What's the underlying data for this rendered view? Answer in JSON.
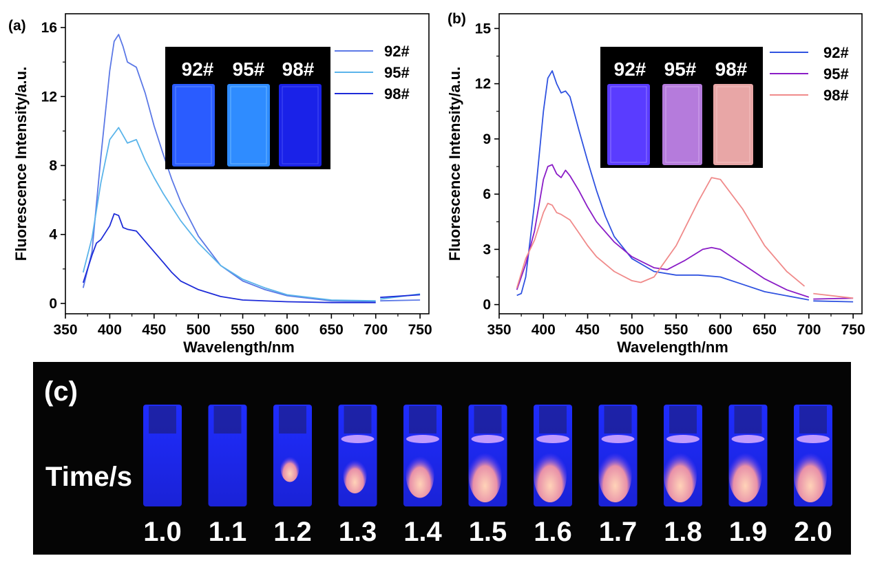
{
  "chart_data": [
    {
      "panel_label": "(a)",
      "type": "line",
      "xlabel": "Wavelength/nm",
      "ylabel": "Fluorescence Intensity/a.u.",
      "xlim": [
        350,
        760
      ],
      "ylim": [
        -0.6,
        16.8
      ],
      "xticks": [
        350,
        400,
        450,
        500,
        550,
        600,
        650,
        700,
        750
      ],
      "yticks": [
        0,
        4,
        8,
        12,
        16
      ],
      "legend_position": "top-right",
      "inset_labels": [
        "92#",
        "95#",
        "98#"
      ],
      "inset_colors": [
        "#2a5cff",
        "#2f8cff",
        "#1a22e8"
      ],
      "series": [
        {
          "name": "92#",
          "color": "#5b78e6",
          "x": [
            370,
            380,
            390,
            400,
            405,
            410,
            415,
            420,
            430,
            440,
            450,
            460,
            470,
            480,
            500,
            525,
            550,
            575,
            600,
            650,
            700,
            705,
            750
          ],
          "y": [
            0.9,
            3.0,
            8.5,
            13.5,
            15.2,
            15.6,
            14.9,
            14.0,
            13.7,
            12.2,
            10.3,
            8.7,
            7.2,
            5.9,
            3.9,
            2.2,
            1.3,
            0.8,
            0.45,
            0.15,
            0.1,
            0.15,
            0.2
          ]
        },
        {
          "name": "95#",
          "color": "#5ab4ea",
          "x": [
            370,
            380,
            390,
            400,
            410,
            420,
            430,
            440,
            450,
            460,
            470,
            480,
            500,
            525,
            550,
            575,
            600,
            650,
            700,
            705,
            750
          ],
          "y": [
            1.8,
            3.8,
            7.0,
            9.5,
            10.2,
            9.3,
            9.5,
            8.3,
            7.3,
            6.4,
            5.6,
            4.8,
            3.5,
            2.2,
            1.4,
            0.9,
            0.5,
            0.2,
            0.15,
            0.25,
            0.55
          ]
        },
        {
          "name": "98#",
          "color": "#1d2bd8",
          "x": [
            370,
            380,
            385,
            390,
            400,
            405,
            410,
            415,
            420,
            430,
            440,
            450,
            460,
            470,
            480,
            500,
            525,
            550,
            600,
            650,
            700,
            705,
            750
          ],
          "y": [
            1.2,
            2.8,
            3.5,
            3.7,
            4.5,
            5.2,
            5.1,
            4.4,
            4.3,
            4.2,
            3.6,
            3.0,
            2.4,
            1.8,
            1.3,
            0.8,
            0.4,
            0.2,
            0.1,
            0.05,
            0.05,
            0.35,
            0.5
          ]
        }
      ]
    },
    {
      "panel_label": "(b)",
      "type": "line",
      "xlabel": "Wavelength/nm",
      "ylabel": "Fluorescence Intensity/a.u.",
      "xlim": [
        350,
        760
      ],
      "ylim": [
        -0.5,
        15.8
      ],
      "xticks": [
        350,
        400,
        450,
        500,
        550,
        600,
        650,
        700,
        750
      ],
      "yticks": [
        0,
        3,
        6,
        9,
        12,
        15
      ],
      "legend_position": "top-right",
      "inset_labels": [
        "92#",
        "95#",
        "98#"
      ],
      "inset_colors": [
        "#5a3cff",
        "#b57bdc",
        "#e8a6a6"
      ],
      "series": [
        {
          "name": "92#",
          "color": "#2f52e0",
          "x": [
            370,
            375,
            380,
            390,
            400,
            405,
            410,
            415,
            420,
            425,
            430,
            440,
            450,
            460,
            470,
            480,
            500,
            525,
            550,
            575,
            600,
            625,
            650,
            700,
            705,
            750
          ],
          "y": [
            0.5,
            0.6,
            1.5,
            5.5,
            10.5,
            12.3,
            12.7,
            12.0,
            11.5,
            11.6,
            11.3,
            9.5,
            7.8,
            6.2,
            4.8,
            3.7,
            2.5,
            1.8,
            1.6,
            1.6,
            1.5,
            1.1,
            0.7,
            0.25,
            0.2,
            0.15
          ]
        },
        {
          "name": "95#",
          "color": "#8a1cc6",
          "x": [
            370,
            380,
            390,
            400,
            405,
            410,
            415,
            420,
            425,
            430,
            440,
            450,
            460,
            480,
            500,
            525,
            540,
            560,
            580,
            590,
            600,
            625,
            650,
            675,
            700,
            705,
            750
          ],
          "y": [
            0.8,
            2.2,
            4.0,
            6.8,
            7.5,
            7.6,
            7.1,
            6.9,
            7.3,
            7.0,
            6.2,
            5.3,
            4.5,
            3.4,
            2.6,
            2.0,
            1.9,
            2.4,
            3.0,
            3.1,
            3.0,
            2.2,
            1.4,
            0.8,
            0.4,
            0.3,
            0.35
          ]
        },
        {
          "name": "98#",
          "color": "#f08a8a",
          "x": [
            370,
            380,
            390,
            400,
            405,
            410,
            415,
            420,
            430,
            440,
            450,
            460,
            480,
            500,
            510,
            525,
            550,
            575,
            590,
            600,
            625,
            650,
            675,
            695,
            705,
            750
          ],
          "y": [
            0.9,
            2.5,
            3.5,
            5.0,
            5.5,
            5.4,
            5.0,
            4.9,
            4.6,
            3.9,
            3.2,
            2.6,
            1.8,
            1.3,
            1.2,
            1.5,
            3.2,
            5.6,
            6.9,
            6.8,
            5.2,
            3.2,
            1.8,
            1.0,
            0.6,
            0.35
          ]
        }
      ]
    }
  ],
  "panel_c": {
    "letter": "(c)",
    "time_label": "Time/s",
    "times": [
      "1.0",
      "1.1",
      "1.2",
      "1.3",
      "1.4",
      "1.5",
      "1.6",
      "1.7",
      "1.8",
      "1.9",
      "2.0"
    ]
  }
}
